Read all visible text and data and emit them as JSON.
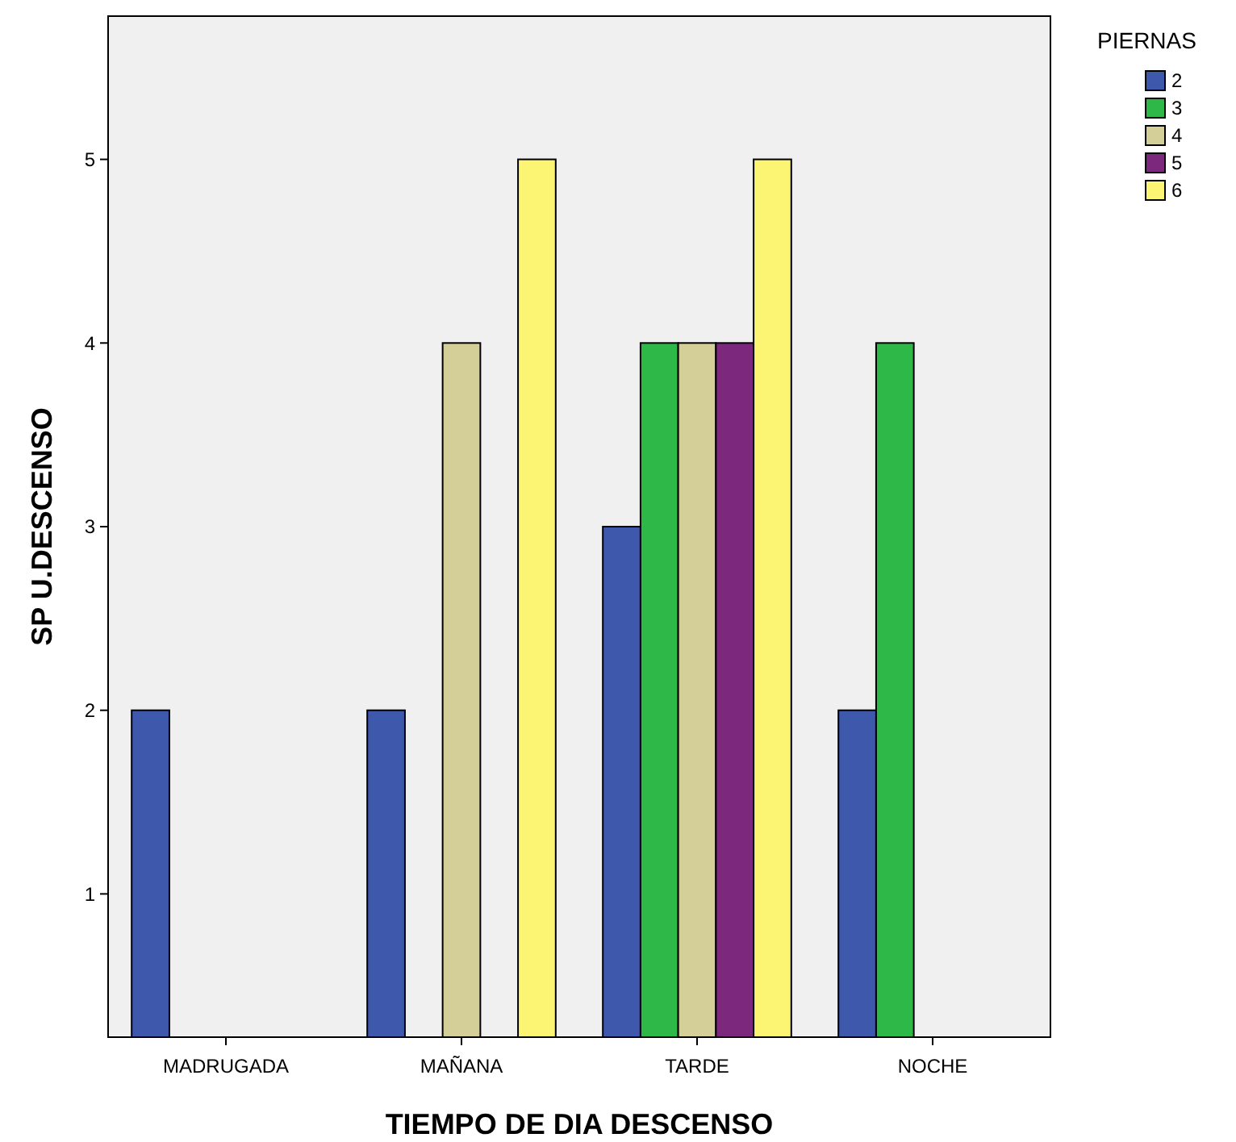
{
  "chart_data": {
    "type": "bar",
    "xlabel": "TIEMPO DE DIA DESCENSO",
    "ylabel": "SP U.DESCENSO",
    "legend_title": "PIERNAS",
    "legend": "right",
    "grid": false,
    "categories": [
      "MADRUGADA",
      "MAÑANA",
      "TARDE",
      "NOCHE"
    ],
    "ylim": [
      0.22,
      5.78
    ],
    "yticks": [
      1,
      2,
      3,
      4,
      5
    ],
    "series": [
      {
        "name": "2",
        "color": "#3e58ac",
        "values": [
          2,
          2,
          3,
          2
        ]
      },
      {
        "name": "3",
        "color": "#2eb848",
        "values": [
          null,
          null,
          4,
          4
        ]
      },
      {
        "name": "4",
        "color": "#d4ce98",
        "values": [
          null,
          4,
          4,
          null
        ]
      },
      {
        "name": "5",
        "color": "#7c287c",
        "values": [
          null,
          null,
          4,
          null
        ]
      },
      {
        "name": "6",
        "color": "#fbf573",
        "values": [
          null,
          5,
          5,
          null
        ]
      }
    ]
  }
}
